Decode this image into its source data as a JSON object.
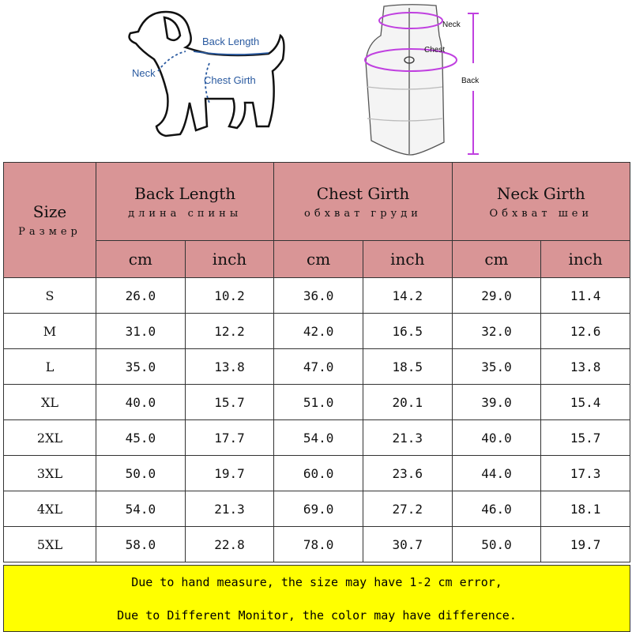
{
  "diagram": {
    "dog_labels": {
      "back_length": "Back Length",
      "neck": "Neck",
      "chest_girth": "Chest Girth"
    },
    "vest_labels": {
      "neck": "Neck",
      "chest": "Chest",
      "back": "Back"
    },
    "colors": {
      "dog_annotation": "#2a5aa0",
      "vest_annotation": "#c040e0"
    }
  },
  "table": {
    "header": {
      "size": {
        "en": "Size",
        "ru": "Размер"
      },
      "groups": [
        {
          "en": "Back Length",
          "ru": "длина спины"
        },
        {
          "en": "Chest Girth",
          "ru": "обхват груди"
        },
        {
          "en": "Neck Girth",
          "ru": "Обхват шеи"
        }
      ],
      "units": [
        "cm",
        "inch",
        "cm",
        "inch",
        "cm",
        "inch"
      ]
    },
    "rows": [
      [
        "S",
        "26.0",
        "10.2",
        "36.0",
        "14.2",
        "29.0",
        "11.4"
      ],
      [
        "M",
        "31.0",
        "12.2",
        "42.0",
        "16.5",
        "32.0",
        "12.6"
      ],
      [
        "L",
        "35.0",
        "13.8",
        "47.0",
        "18.5",
        "35.0",
        "13.8"
      ],
      [
        "XL",
        "40.0",
        "15.7",
        "51.0",
        "20.1",
        "39.0",
        "15.4"
      ],
      [
        "2XL",
        "45.0",
        "17.7",
        "54.0",
        "21.3",
        "40.0",
        "15.7"
      ],
      [
        "3XL",
        "50.0",
        "19.7",
        "60.0",
        "23.6",
        "44.0",
        "17.3"
      ],
      [
        "4XL",
        "54.0",
        "21.3",
        "69.0",
        "27.2",
        "46.0",
        "18.1"
      ],
      [
        "5XL",
        "58.0",
        "22.8",
        "78.0",
        "30.7",
        "50.0",
        "19.7"
      ]
    ],
    "colors": {
      "header_bg": "#d99596",
      "note_bg": "#ffff00"
    }
  },
  "notes": [
    "Due to hand measure, the size may have 1-2 cm error,",
    "Due to Different Monitor, the color may have difference."
  ]
}
